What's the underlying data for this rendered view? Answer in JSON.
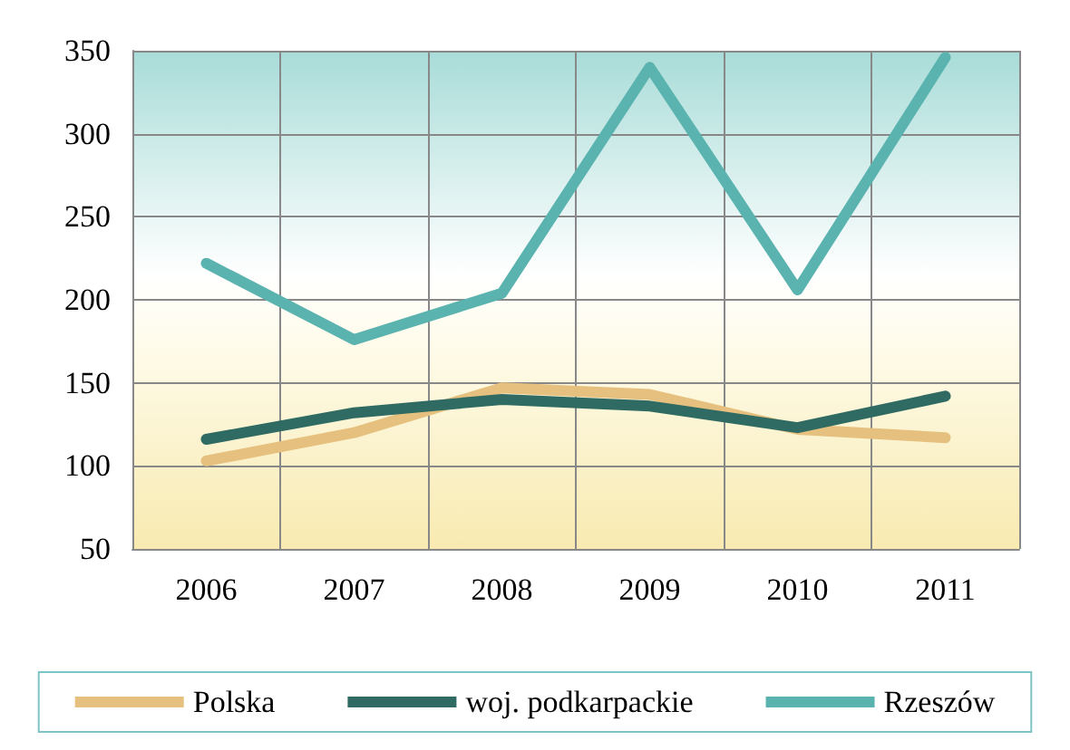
{
  "chart_data": {
    "type": "line",
    "categories": [
      "2006",
      "2007",
      "2008",
      "2009",
      "2010",
      "2011"
    ],
    "series": [
      {
        "name": "Polska",
        "color": "#e6c07e",
        "values": [
          103,
          120,
          147,
          143,
          122,
          117
        ]
      },
      {
        "name": "woj. podkarpackie",
        "color": "#2f6b63",
        "values": [
          116,
          132,
          140,
          136,
          123,
          142
        ]
      },
      {
        "name": "Rzeszów",
        "color": "#5bb3b0",
        "values": [
          222,
          176,
          204,
          340,
          206,
          346
        ]
      }
    ],
    "ylim": [
      50,
      350
    ],
    "yticks": [
      50,
      100,
      150,
      200,
      250,
      300,
      350
    ],
    "grid": true,
    "legend": "bottom",
    "marker": "none",
    "line_style": "solid"
  }
}
